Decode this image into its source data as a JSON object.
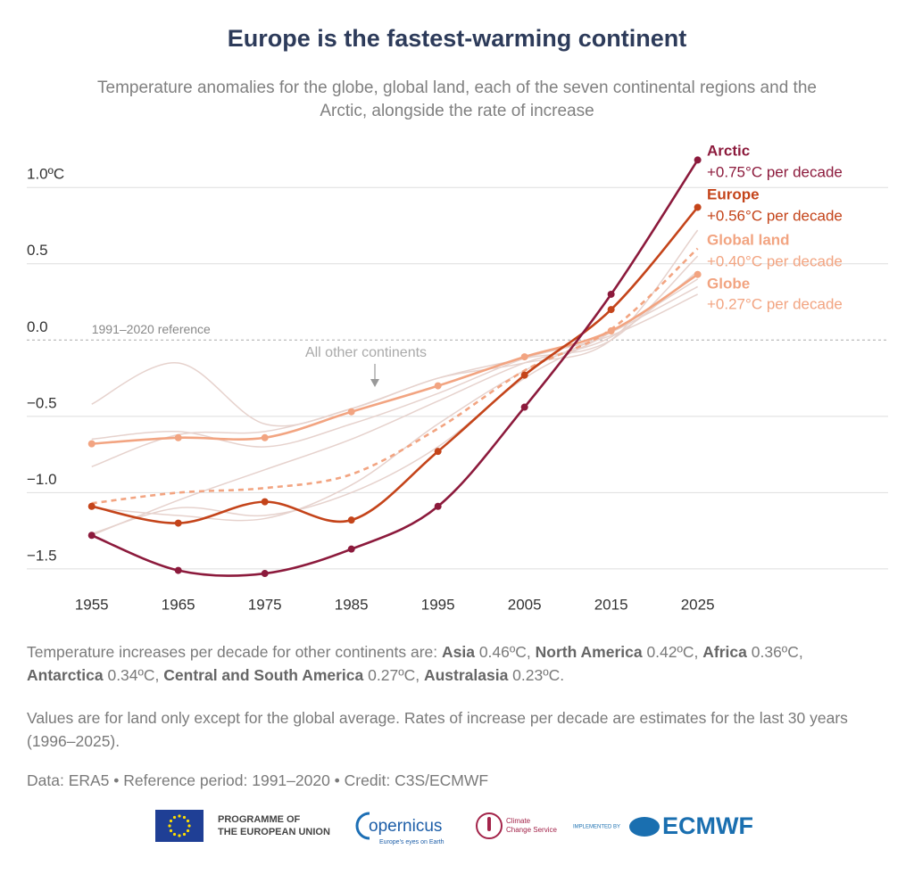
{
  "chart_data": {
    "type": "line",
    "title": "Europe is the fastest-warming continent",
    "subtitle": "Temperature anomalies for the globe, global land, each of the seven continental regions and the Arctic, alongside the rate of increase",
    "x": [
      1955,
      1965,
      1975,
      1985,
      1995,
      2005,
      2015,
      2025
    ],
    "xlim": [
      1947.5,
      2047
    ],
    "xticks": [
      1955,
      1965,
      1975,
      1985,
      1995,
      2005,
      2015,
      2025
    ],
    "ylim": [
      -1.6,
      1.2
    ],
    "yticks": [
      {
        "value": -1.5,
        "label": "−1.5"
      },
      {
        "value": -1.0,
        "label": "−1.0"
      },
      {
        "value": -0.5,
        "label": "−0.5"
      },
      {
        "value": 0,
        "label": "0.0"
      },
      0.5,
      {
        "value": 1.0,
        "label": "1.0ºC"
      }
    ],
    "grid": true,
    "reference": {
      "value": 0,
      "label": "1991–2020 reference"
    },
    "series": [
      {
        "name": "Arctic",
        "rate": "+0.75°C per decade",
        "color": "#8c1a3c",
        "markers": true,
        "dashed": false,
        "values": [
          -1.28,
          -1.51,
          -1.53,
          -1.37,
          -1.09,
          -0.44,
          0.3,
          1.18
        ]
      },
      {
        "name": "Europe",
        "rate": "+0.56°C per decade",
        "color": "#c4441a",
        "markers": true,
        "dashed": false,
        "values": [
          -1.09,
          -1.2,
          -1.06,
          -1.18,
          -0.73,
          -0.23,
          0.2,
          0.87
        ]
      },
      {
        "name": "Global land",
        "rate": "+0.40°C per decade",
        "color": "#f2a481",
        "markers": false,
        "dashed": true,
        "values": [
          -1.07,
          -1.0,
          -0.97,
          -0.88,
          -0.58,
          -0.2,
          0.07,
          0.6
        ]
      },
      {
        "name": "Globe",
        "rate": "+0.27°C per decade",
        "color": "#f2a481",
        "markers": true,
        "dashed": false,
        "values": [
          -0.68,
          -0.64,
          -0.64,
          -0.47,
          -0.3,
          -0.11,
          0.06,
          0.43
        ]
      }
    ],
    "other_lines": {
      "label": "All other continents",
      "color": "#e6d2cd",
      "values": [
        [
          -0.42,
          -0.15,
          -0.55,
          -0.45,
          -0.25,
          -0.15,
          0.0,
          0.72
        ],
        [
          -0.83,
          -0.62,
          -0.6,
          -0.45,
          -0.25,
          -0.12,
          0.0,
          0.55
        ],
        [
          -1.28,
          -1.05,
          -0.85,
          -0.65,
          -0.4,
          -0.15,
          0.02,
          0.45
        ],
        [
          -1.1,
          -1.15,
          -1.17,
          -0.95,
          -0.55,
          -0.2,
          0.05,
          0.35
        ],
        [
          -1.27,
          -1.1,
          -1.15,
          -1.0,
          -0.7,
          -0.25,
          0.05,
          0.4
        ],
        [
          -0.65,
          -0.6,
          -0.7,
          -0.55,
          -0.35,
          -0.12,
          0.03,
          0.3
        ]
      ]
    }
  },
  "notes": [
    [
      {
        "text": "Temperature increases per decade for other continents are: ",
        "bold": false
      },
      {
        "text": "Asia",
        "bold": true
      },
      {
        "text": " 0.46ºC, ",
        "bold": false
      },
      {
        "text": "North America",
        "bold": true
      },
      {
        "text": " 0.42ºC, ",
        "bold": false
      },
      {
        "text": "Africa",
        "bold": true
      },
      {
        "text": " 0.36ºC, ",
        "bold": false
      },
      {
        "text": "Antarctica",
        "bold": true
      },
      {
        "text": " 0.34ºC, ",
        "bold": false
      },
      {
        "text": "Central and South America",
        "bold": true
      },
      {
        "text": " 0.27ºC, ",
        "bold": false
      },
      {
        "text": "Australasia",
        "bold": true
      },
      {
        "text": " 0.23ºC.",
        "bold": false
      }
    ],
    [
      {
        "text": "Values are for land only except for the global average. Rates of increase per decade are estimates for the last 30 years (1996–2025).",
        "bold": false
      }
    ],
    [
      {
        "text": "Data: ERA5 • Reference period: 1991–2020 • Credit: C3S/ECMWF",
        "bold": false
      }
    ]
  ],
  "logos": {
    "eu": [
      "PROGRAMME OF",
      "THE EUROPEAN UNION"
    ],
    "copernicus": [
      "opernicus",
      "Europe's eyes on Earth"
    ],
    "c3s": [
      "Climate",
      "Change Service"
    ],
    "ecmwf": [
      "IMPLEMENTED BY",
      "ECMWF"
    ]
  }
}
